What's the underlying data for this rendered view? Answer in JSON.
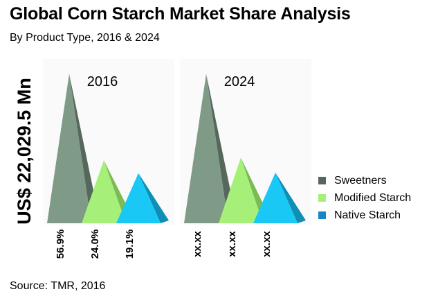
{
  "header": {
    "title": "Global Corn Starch Market Share Analysis",
    "subtitle": "By Product Type, 2016 & 2024"
  },
  "footer": {
    "source": "Source: TMR, 2016"
  },
  "chart_data": {
    "type": "bar",
    "title": "Global Corn Starch Market Share Analysis",
    "subtitle": "By Product Type, 2016 & 2024",
    "ylabel": "US$ 22,029.5 Mn",
    "xlabel": "",
    "categories": [
      "2016",
      "2024"
    ],
    "ylim": [
      0,
      60
    ],
    "grid": false,
    "legend_position": "right",
    "series": [
      {
        "name": "Sweetners",
        "color": "#7f9a87",
        "side_color": "#56675b",
        "values": [
          56.9,
          56.9
        ],
        "labels": [
          "56.9%",
          "xx.xx"
        ]
      },
      {
        "name": "Modified Starch",
        "color": "#a6f079",
        "side_color": "#7cba56",
        "values": [
          24.0,
          25.0
        ],
        "labels": [
          "24.0%",
          "xx.xx"
        ]
      },
      {
        "name": "Native Starch",
        "color": "#19c8f5",
        "side_color": "#0f8fb5",
        "values": [
          19.1,
          19.3
        ],
        "labels": [
          "19.1%",
          "xx.xx"
        ]
      }
    ]
  }
}
